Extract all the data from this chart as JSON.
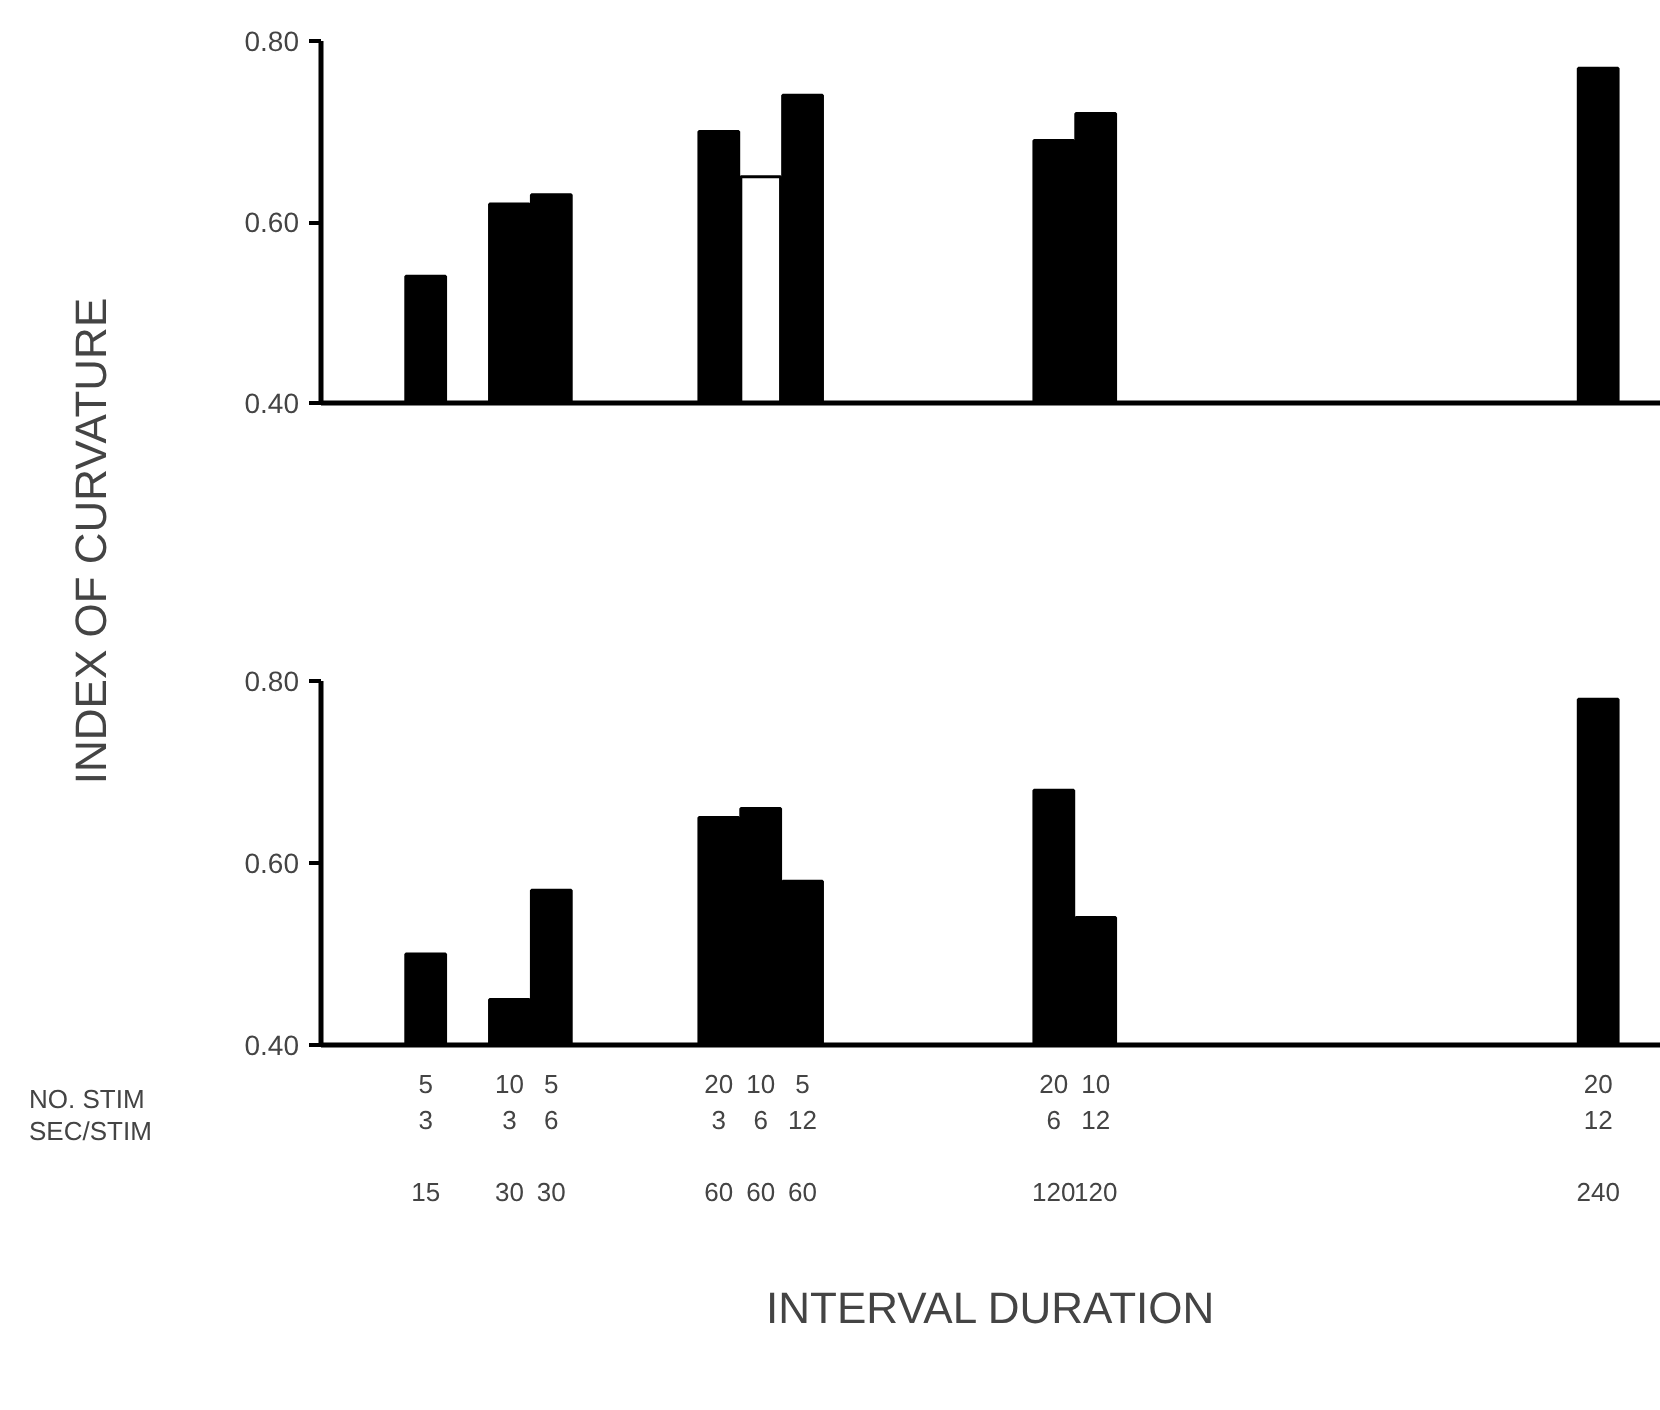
{
  "chart_data": [
    {
      "type": "bar",
      "ylabel": "INDEX OF CURVATURE",
      "tick_labels": "y",
      "ylim": [
        0.4,
        0.8
      ],
      "yticks": [
        {
          "value": 0.4,
          "label": "0.40"
        },
        {
          "value": 0.6,
          "label": "0.60"
        },
        {
          "value": 0.8,
          "label": "0.80"
        }
      ],
      "categories": [
        null,
        null,
        null,
        null,
        null,
        null,
        null,
        null,
        null,
        null,
        null,
        null,
        null,
        null,
        null,
        null,
        null,
        null,
        null,
        null,
        null,
        null,
        null,
        null,
        null,
        null,
        null,
        null,
        null,
        null,
        null,
        null
      ],
      "values": [
        null,
        null,
        0.54,
        null,
        0.62,
        0.63,
        null,
        null,
        null,
        0.7,
        0.65,
        0.74,
        null,
        null,
        null,
        null,
        null,
        0.69,
        0.72,
        null,
        null,
        null,
        null,
        null,
        null,
        null,
        null,
        null,
        null,
        null,
        0.77,
        null
      ],
      "colors": [
        null,
        null,
        "#000000",
        null,
        "#000000",
        "#000000",
        null,
        null,
        null,
        "#000000",
        "#ffffff",
        "#000000",
        null,
        null,
        null,
        null,
        null,
        "#000000",
        "#000000",
        null,
        null,
        null,
        null,
        null,
        null,
        null,
        null,
        null,
        null,
        null,
        "#000000",
        null
      ]
    },
    {
      "type": "bar",
      "xlabel": "INTERVAL DURATION",
      "annotations": [
        "NO. STIM",
        "SEC/STIM"
      ],
      "ylim": [
        0.4,
        0.8
      ],
      "yticks": [
        {
          "value": 0.4,
          "label": "0.40"
        },
        {
          "value": 0.6,
          "label": "0.60"
        },
        {
          "value": 0.8,
          "label": "0.80"
        }
      ],
      "categories": [
        null,
        null,
        "5\n3\n\n15",
        null,
        "10\n3\n\n30",
        "5\n6\n\n30",
        null,
        null,
        null,
        "20\n3\n\n60",
        "10\n6\n\n60",
        "5\n12\n\n60",
        null,
        null,
        null,
        null,
        null,
        "20\n6\n\n120",
        "10\n12\n\n120",
        null,
        null,
        null,
        null,
        null,
        null,
        null,
        null,
        null,
        null,
        null,
        "20\n12\n\n240",
        null
      ],
      "values": [
        null,
        null,
        0.5,
        null,
        0.45,
        0.57,
        null,
        null,
        null,
        0.65,
        0.66,
        0.58,
        null,
        null,
        null,
        null,
        null,
        0.68,
        0.54,
        null,
        null,
        null,
        null,
        null,
        null,
        null,
        null,
        null,
        null,
        null,
        0.78,
        null
      ],
      "colors": [
        null,
        null,
        "#000000",
        null,
        "#000000",
        "#000000",
        null,
        null,
        null,
        "#000000",
        "#000000",
        "#000000",
        null,
        null,
        null,
        null,
        null,
        "#000000",
        "#000000",
        null,
        null,
        null,
        null,
        null,
        null,
        null,
        null,
        null,
        null,
        null,
        "#000000",
        null
      ]
    }
  ]
}
